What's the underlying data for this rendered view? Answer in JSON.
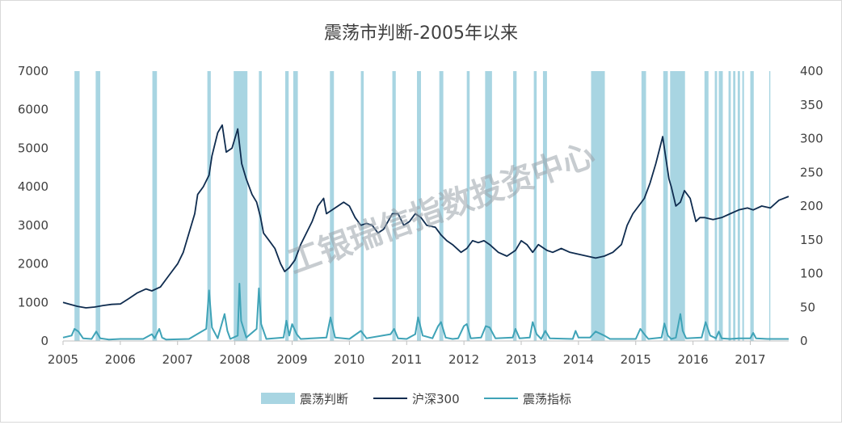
{
  "chart_data": {
    "type": "line",
    "title": "震荡市判断-2005年以来",
    "xlabel": "",
    "ylabel": "",
    "x_range": [
      2005,
      2017.67
    ],
    "x_ticks": [
      "2005",
      "2006",
      "2007",
      "2008",
      "2009",
      "2010",
      "2011",
      "2012",
      "2013",
      "2014",
      "2015",
      "2016",
      "2017"
    ],
    "y_left": {
      "range": [
        0,
        7000
      ],
      "ticks": [
        "0",
        "1000",
        "2000",
        "3000",
        "4000",
        "5000",
        "6000",
        "7000"
      ]
    },
    "y_right": {
      "range": [
        0,
        400
      ],
      "ticks": [
        "0",
        "50",
        "100",
        "150",
        "200",
        "250",
        "300",
        "350",
        "400"
      ]
    },
    "grid": false,
    "legend_position": "bottom",
    "colors": {
      "band": "#a8d5e2",
      "hs300": "#0f2c4f",
      "indicator": "#3fa3b7",
      "axis": "#bfbfbf"
    },
    "watermark": "工银瑞信指数投资中心",
    "series": [
      {
        "name": "震荡判断",
        "type": "band",
        "intervals": [
          [
            2005.2,
            2005.29
          ],
          [
            2005.57,
            2005.65
          ],
          [
            2006.56,
            2006.64
          ],
          [
            2007.52,
            2007.58
          ],
          [
            2007.98,
            2008.22
          ],
          [
            2008.42,
            2008.47
          ],
          [
            2008.88,
            2008.94
          ],
          [
            2009.02,
            2009.1
          ],
          [
            2009.66,
            2009.73
          ],
          [
            2010.2,
            2010.25
          ],
          [
            2010.75,
            2010.81
          ],
          [
            2011.18,
            2011.25
          ],
          [
            2011.57,
            2011.64
          ],
          [
            2012.05,
            2012.1
          ],
          [
            2012.37,
            2012.49
          ],
          [
            2012.86,
            2012.92
          ],
          [
            2013.22,
            2013.27
          ],
          [
            2013.38,
            2013.45
          ],
          [
            2014.22,
            2014.46
          ],
          [
            2015.1,
            2015.18
          ],
          [
            2015.48,
            2015.56
          ],
          [
            2015.6,
            2015.86
          ],
          [
            2016.2,
            2016.27
          ],
          [
            2016.38,
            2016.42
          ],
          [
            2016.45,
            2016.52
          ],
          [
            2016.62,
            2016.66
          ],
          [
            2016.7,
            2016.74
          ],
          [
            2016.78,
            2016.82
          ],
          [
            2016.86,
            2016.89
          ],
          [
            2017.0,
            2017.06
          ],
          [
            2017.33,
            2017.35
          ]
        ]
      },
      {
        "name": "沪深300",
        "axis": "left",
        "x": [
          2005.0,
          2005.1,
          2005.25,
          2005.4,
          2005.55,
          2005.7,
          2005.85,
          2006.0,
          2006.15,
          2006.3,
          2006.45,
          2006.55,
          2006.7,
          2006.85,
          2007.0,
          2007.1,
          2007.2,
          2007.3,
          2007.35,
          2007.45,
          2007.55,
          2007.6,
          2007.7,
          2007.78,
          2007.85,
          2007.95,
          2008.05,
          2008.12,
          2008.2,
          2008.3,
          2008.38,
          2008.45,
          2008.5,
          2008.6,
          2008.7,
          2008.8,
          2008.87,
          2008.95,
          2009.05,
          2009.15,
          2009.25,
          2009.35,
          2009.45,
          2009.55,
          2009.6,
          2009.7,
          2009.8,
          2009.9,
          2010.0,
          2010.1,
          2010.2,
          2010.3,
          2010.4,
          2010.5,
          2010.6,
          2010.75,
          2010.85,
          2010.95,
          2011.05,
          2011.15,
          2011.25,
          2011.35,
          2011.5,
          2011.6,
          2011.7,
          2011.8,
          2011.95,
          2012.05,
          2012.15,
          2012.25,
          2012.35,
          2012.45,
          2012.6,
          2012.75,
          2012.9,
          2013.0,
          2013.1,
          2013.2,
          2013.3,
          2013.45,
          2013.55,
          2013.7,
          2013.85,
          2014.0,
          2014.15,
          2014.3,
          2014.45,
          2014.6,
          2014.75,
          2014.85,
          2014.95,
          2015.05,
          2015.15,
          2015.25,
          2015.35,
          2015.42,
          2015.47,
          2015.52,
          2015.58,
          2015.62,
          2015.7,
          2015.78,
          2015.85,
          2015.95,
          2016.0,
          2016.05,
          2016.12,
          2016.2,
          2016.35,
          2016.5,
          2016.65,
          2016.8,
          2016.95,
          2017.05,
          2017.2,
          2017.35,
          2017.5,
          2017.67
        ],
        "y": [
          1000,
          960,
          900,
          860,
          880,
          920,
          950,
          960,
          1100,
          1250,
          1350,
          1300,
          1400,
          1700,
          2000,
          2300,
          2800,
          3300,
          3800,
          4000,
          4300,
          4800,
          5400,
          5600,
          4900,
          5000,
          5500,
          4600,
          4200,
          3800,
          3600,
          3200,
          2800,
          2600,
          2400,
          2000,
          1800,
          1900,
          2100,
          2500,
          2800,
          3100,
          3500,
          3700,
          3300,
          3400,
          3500,
          3600,
          3500,
          3200,
          3000,
          3050,
          3000,
          2800,
          2900,
          3300,
          3300,
          3000,
          3100,
          3300,
          3200,
          3000,
          2950,
          2750,
          2600,
          2500,
          2300,
          2400,
          2600,
          2550,
          2600,
          2500,
          2300,
          2200,
          2350,
          2600,
          2500,
          2300,
          2500,
          2350,
          2300,
          2400,
          2300,
          2250,
          2200,
          2150,
          2200,
          2300,
          2500,
          3000,
          3300,
          3500,
          3700,
          4100,
          4600,
          5000,
          5300,
          4800,
          4200,
          4000,
          3500,
          3600,
          3900,
          3700,
          3400,
          3100,
          3200,
          3200,
          3150,
          3200,
          3300,
          3400,
          3450,
          3400,
          3500,
          3450,
          3650,
          3750
        ]
      },
      {
        "name": "震荡指标",
        "axis": "right",
        "x": [
          2005.0,
          2005.15,
          2005.2,
          2005.27,
          2005.35,
          2005.5,
          2005.58,
          2005.65,
          2005.8,
          2006.0,
          2006.4,
          2006.55,
          2006.6,
          2006.68,
          2006.73,
          2006.8,
          2007.2,
          2007.5,
          2007.55,
          2007.6,
          2007.7,
          2007.82,
          2007.87,
          2007.92,
          2008.05,
          2008.08,
          2008.11,
          2008.2,
          2008.38,
          2008.42,
          2008.46,
          2008.55,
          2008.85,
          2008.9,
          2008.95,
          2009.0,
          2009.08,
          2009.15,
          2009.6,
          2009.67,
          2009.75,
          2010.0,
          2010.2,
          2010.3,
          2010.72,
          2010.78,
          2010.85,
          2011.0,
          2011.15,
          2011.2,
          2011.28,
          2011.45,
          2011.55,
          2011.6,
          2011.68,
          2011.8,
          2011.9,
          2012.0,
          2012.05,
          2012.12,
          2012.3,
          2012.38,
          2012.45,
          2012.55,
          2012.85,
          2012.9,
          2012.97,
          2013.15,
          2013.2,
          2013.27,
          2013.35,
          2013.42,
          2013.5,
          2013.9,
          2013.95,
          2014.0,
          2014.2,
          2014.3,
          2014.45,
          2014.55,
          2015.0,
          2015.08,
          2015.15,
          2015.22,
          2015.45,
          2015.5,
          2015.56,
          2015.62,
          2015.7,
          2015.78,
          2015.82,
          2015.88,
          2016.15,
          2016.22,
          2016.3,
          2016.4,
          2016.45,
          2016.5,
          2016.65,
          2016.8,
          2017.0,
          2017.05,
          2017.1,
          2017.3,
          2017.67
        ],
        "y": [
          5,
          8,
          18,
          14,
          4,
          3,
          14,
          4,
          2,
          3,
          3,
          10,
          4,
          18,
          5,
          2,
          3,
          18,
          75,
          20,
          4,
          40,
          15,
          3,
          8,
          85,
          30,
          5,
          18,
          78,
          25,
          3,
          5,
          30,
          8,
          25,
          10,
          3,
          5,
          35,
          5,
          3,
          15,
          4,
          10,
          18,
          4,
          3,
          10,
          35,
          8,
          4,
          22,
          28,
          5,
          3,
          4,
          22,
          25,
          4,
          5,
          22,
          20,
          4,
          5,
          18,
          4,
          5,
          28,
          10,
          3,
          15,
          4,
          3,
          15,
          5,
          5,
          14,
          8,
          3,
          3,
          18,
          10,
          3,
          5,
          26,
          8,
          3,
          5,
          40,
          15,
          4,
          5,
          28,
          8,
          4,
          14,
          4,
          3,
          4,
          4,
          12,
          4,
          3,
          3
        ]
      }
    ]
  }
}
